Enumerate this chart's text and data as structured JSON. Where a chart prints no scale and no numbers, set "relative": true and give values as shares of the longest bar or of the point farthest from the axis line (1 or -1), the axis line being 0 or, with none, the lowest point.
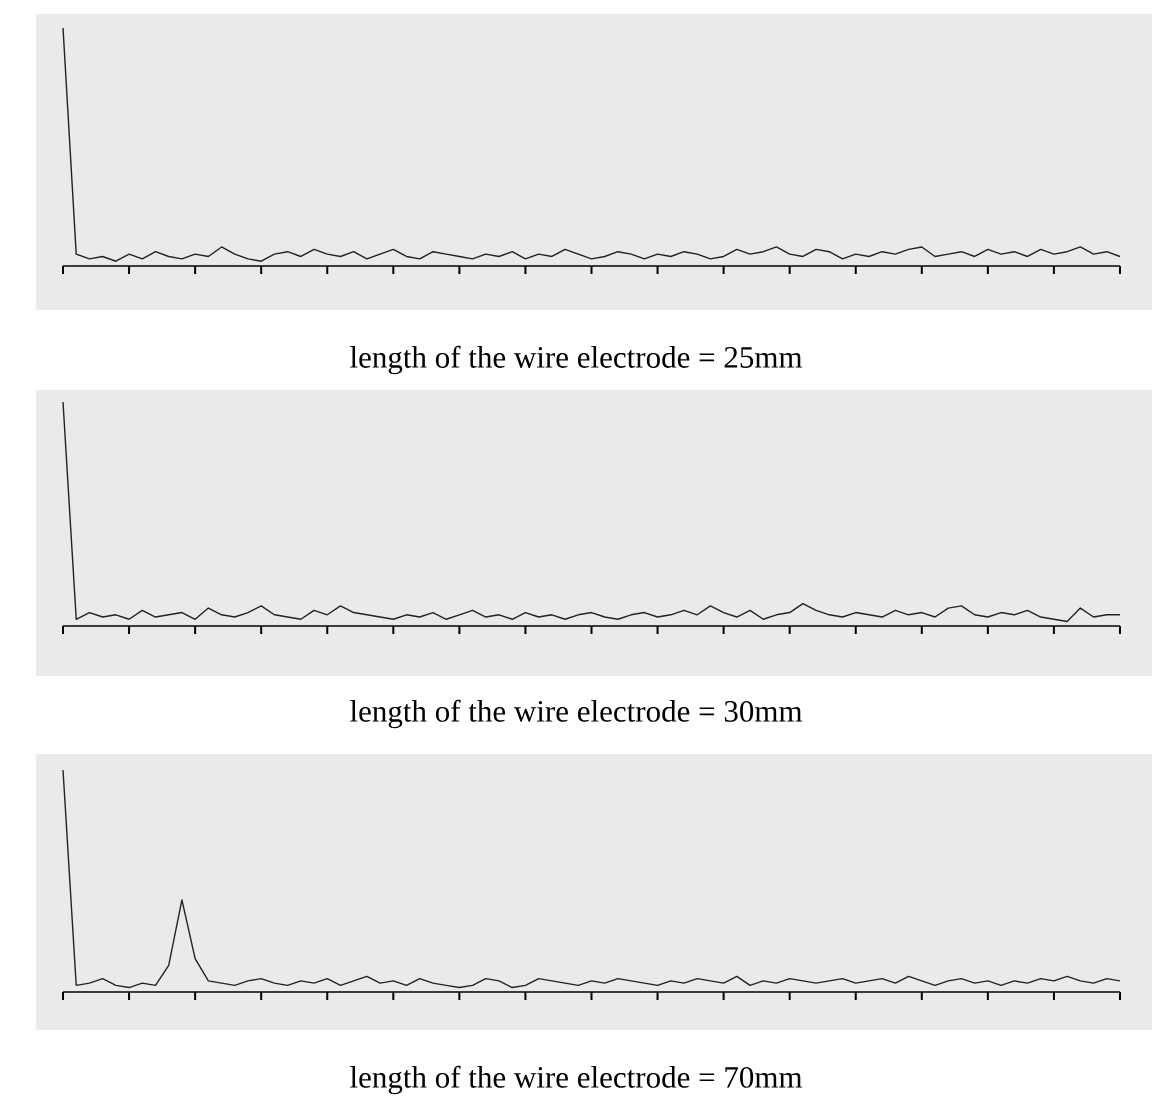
{
  "chart_data": [
    {
      "type": "line",
      "title": "length of the wire electrode = 25mm",
      "relative": true,
      "color": "#222222",
      "categories": [
        null,
        null,
        null,
        null,
        null,
        null,
        null,
        null,
        null,
        null,
        null,
        null,
        null,
        null,
        null,
        null,
        null,
        null,
        null,
        null,
        null,
        null,
        null,
        null,
        null,
        null,
        null,
        null,
        null,
        null,
        null,
        null,
        null,
        null,
        null,
        null,
        null,
        null,
        null,
        null,
        null,
        null,
        null,
        null,
        null,
        null,
        null,
        null,
        null,
        null,
        null,
        null,
        null,
        null,
        null,
        null,
        null,
        null,
        null,
        null,
        null,
        null,
        null,
        null,
        null,
        null,
        null,
        null,
        null,
        null,
        null,
        null,
        null,
        null,
        null,
        null,
        null,
        null,
        null,
        null,
        null
      ],
      "values": [
        1,
        0.05,
        0.03,
        0.04,
        0.02,
        0.05,
        0.03,
        0.06,
        0.04,
        0.03,
        0.05,
        0.04,
        0.08,
        0.05,
        0.03,
        0.02,
        0.05,
        0.06,
        0.04,
        0.07,
        0.05,
        0.04,
        0.06,
        0.03,
        0.05,
        0.07,
        0.04,
        0.03,
        0.06,
        0.05,
        0.04,
        0.03,
        0.05,
        0.04,
        0.06,
        0.03,
        0.05,
        0.04,
        0.07,
        0.05,
        0.03,
        0.04,
        0.06,
        0.05,
        0.03,
        0.05,
        0.04,
        0.06,
        0.05,
        0.03,
        0.04,
        0.07,
        0.05,
        0.06,
        0.08,
        0.05,
        0.04,
        0.07,
        0.06,
        0.03,
        0.05,
        0.04,
        0.06,
        0.05,
        0.07,
        0.08,
        0.04,
        0.05,
        0.06,
        0.04,
        0.07,
        0.05,
        0.06,
        0.04,
        0.07,
        0.05,
        0.06,
        0.08,
        0.05,
        0.06,
        0.04
      ]
    },
    {
      "type": "line",
      "title": "length of the wire electrode = 30mm",
      "relative": true,
      "color": "#222222",
      "categories": [
        null,
        null,
        null,
        null,
        null,
        null,
        null,
        null,
        null,
        null,
        null,
        null,
        null,
        null,
        null,
        null,
        null,
        null,
        null,
        null,
        null,
        null,
        null,
        null,
        null,
        null,
        null,
        null,
        null,
        null,
        null,
        null,
        null,
        null,
        null,
        null,
        null,
        null,
        null,
        null,
        null,
        null,
        null,
        null,
        null,
        null,
        null,
        null,
        null,
        null,
        null,
        null,
        null,
        null,
        null,
        null,
        null,
        null,
        null,
        null,
        null,
        null,
        null,
        null,
        null,
        null,
        null,
        null,
        null,
        null,
        null,
        null,
        null,
        null,
        null,
        null,
        null,
        null,
        null,
        null,
        null
      ],
      "values": [
        1,
        0.03,
        0.06,
        0.04,
        0.05,
        0.03,
        0.07,
        0.04,
        0.05,
        0.06,
        0.03,
        0.08,
        0.05,
        0.04,
        0.06,
        0.09,
        0.05,
        0.04,
        0.03,
        0.07,
        0.05,
        0.09,
        0.06,
        0.05,
        0.04,
        0.03,
        0.05,
        0.04,
        0.06,
        0.03,
        0.05,
        0.07,
        0.04,
        0.05,
        0.03,
        0.06,
        0.04,
        0.05,
        0.03,
        0.05,
        0.06,
        0.04,
        0.03,
        0.05,
        0.06,
        0.04,
        0.05,
        0.07,
        0.05,
        0.09,
        0.06,
        0.04,
        0.07,
        0.03,
        0.05,
        0.06,
        0.1,
        0.07,
        0.05,
        0.04,
        0.06,
        0.05,
        0.04,
        0.07,
        0.05,
        0.06,
        0.04,
        0.08,
        0.09,
        0.05,
        0.04,
        0.06,
        0.05,
        0.07,
        0.04,
        0.03,
        0.02,
        0.08,
        0.04,
        0.05,
        0.05
      ]
    },
    {
      "type": "line",
      "title": "length of the wire electrode = 70mm",
      "relative": true,
      "color": "#222222",
      "categories": [
        null,
        null,
        null,
        null,
        null,
        null,
        null,
        null,
        null,
        null,
        null,
        null,
        null,
        null,
        null,
        null,
        null,
        null,
        null,
        null,
        null,
        null,
        null,
        null,
        null,
        null,
        null,
        null,
        null,
        null,
        null,
        null,
        null,
        null,
        null,
        null,
        null,
        null,
        null,
        null,
        null,
        null,
        null,
        null,
        null,
        null,
        null,
        null,
        null,
        null,
        null,
        null,
        null,
        null,
        null,
        null,
        null,
        null,
        null,
        null,
        null,
        null,
        null,
        null,
        null,
        null,
        null,
        null,
        null,
        null,
        null,
        null,
        null,
        null,
        null,
        null,
        null,
        null,
        null,
        null,
        null
      ],
      "values": [
        1,
        0.03,
        0.04,
        0.06,
        0.03,
        0.02,
        0.04,
        0.03,
        0.12,
        0.415,
        0.15,
        0.05,
        0.04,
        0.03,
        0.05,
        0.06,
        0.04,
        0.03,
        0.05,
        0.04,
        0.06,
        0.03,
        0.05,
        0.07,
        0.04,
        0.05,
        0.03,
        0.06,
        0.04,
        0.03,
        0.02,
        0.03,
        0.06,
        0.05,
        0.02,
        0.03,
        0.06,
        0.05,
        0.04,
        0.03,
        0.05,
        0.04,
        0.06,
        0.05,
        0.04,
        0.03,
        0.05,
        0.04,
        0.06,
        0.05,
        0.04,
        0.07,
        0.03,
        0.05,
        0.04,
        0.06,
        0.05,
        0.04,
        0.05,
        0.06,
        0.04,
        0.05,
        0.06,
        0.04,
        0.07,
        0.05,
        0.03,
        0.05,
        0.06,
        0.04,
        0.05,
        0.03,
        0.05,
        0.04,
        0.06,
        0.05,
        0.07,
        0.05,
        0.04,
        0.06,
        0.05
      ]
    }
  ]
}
